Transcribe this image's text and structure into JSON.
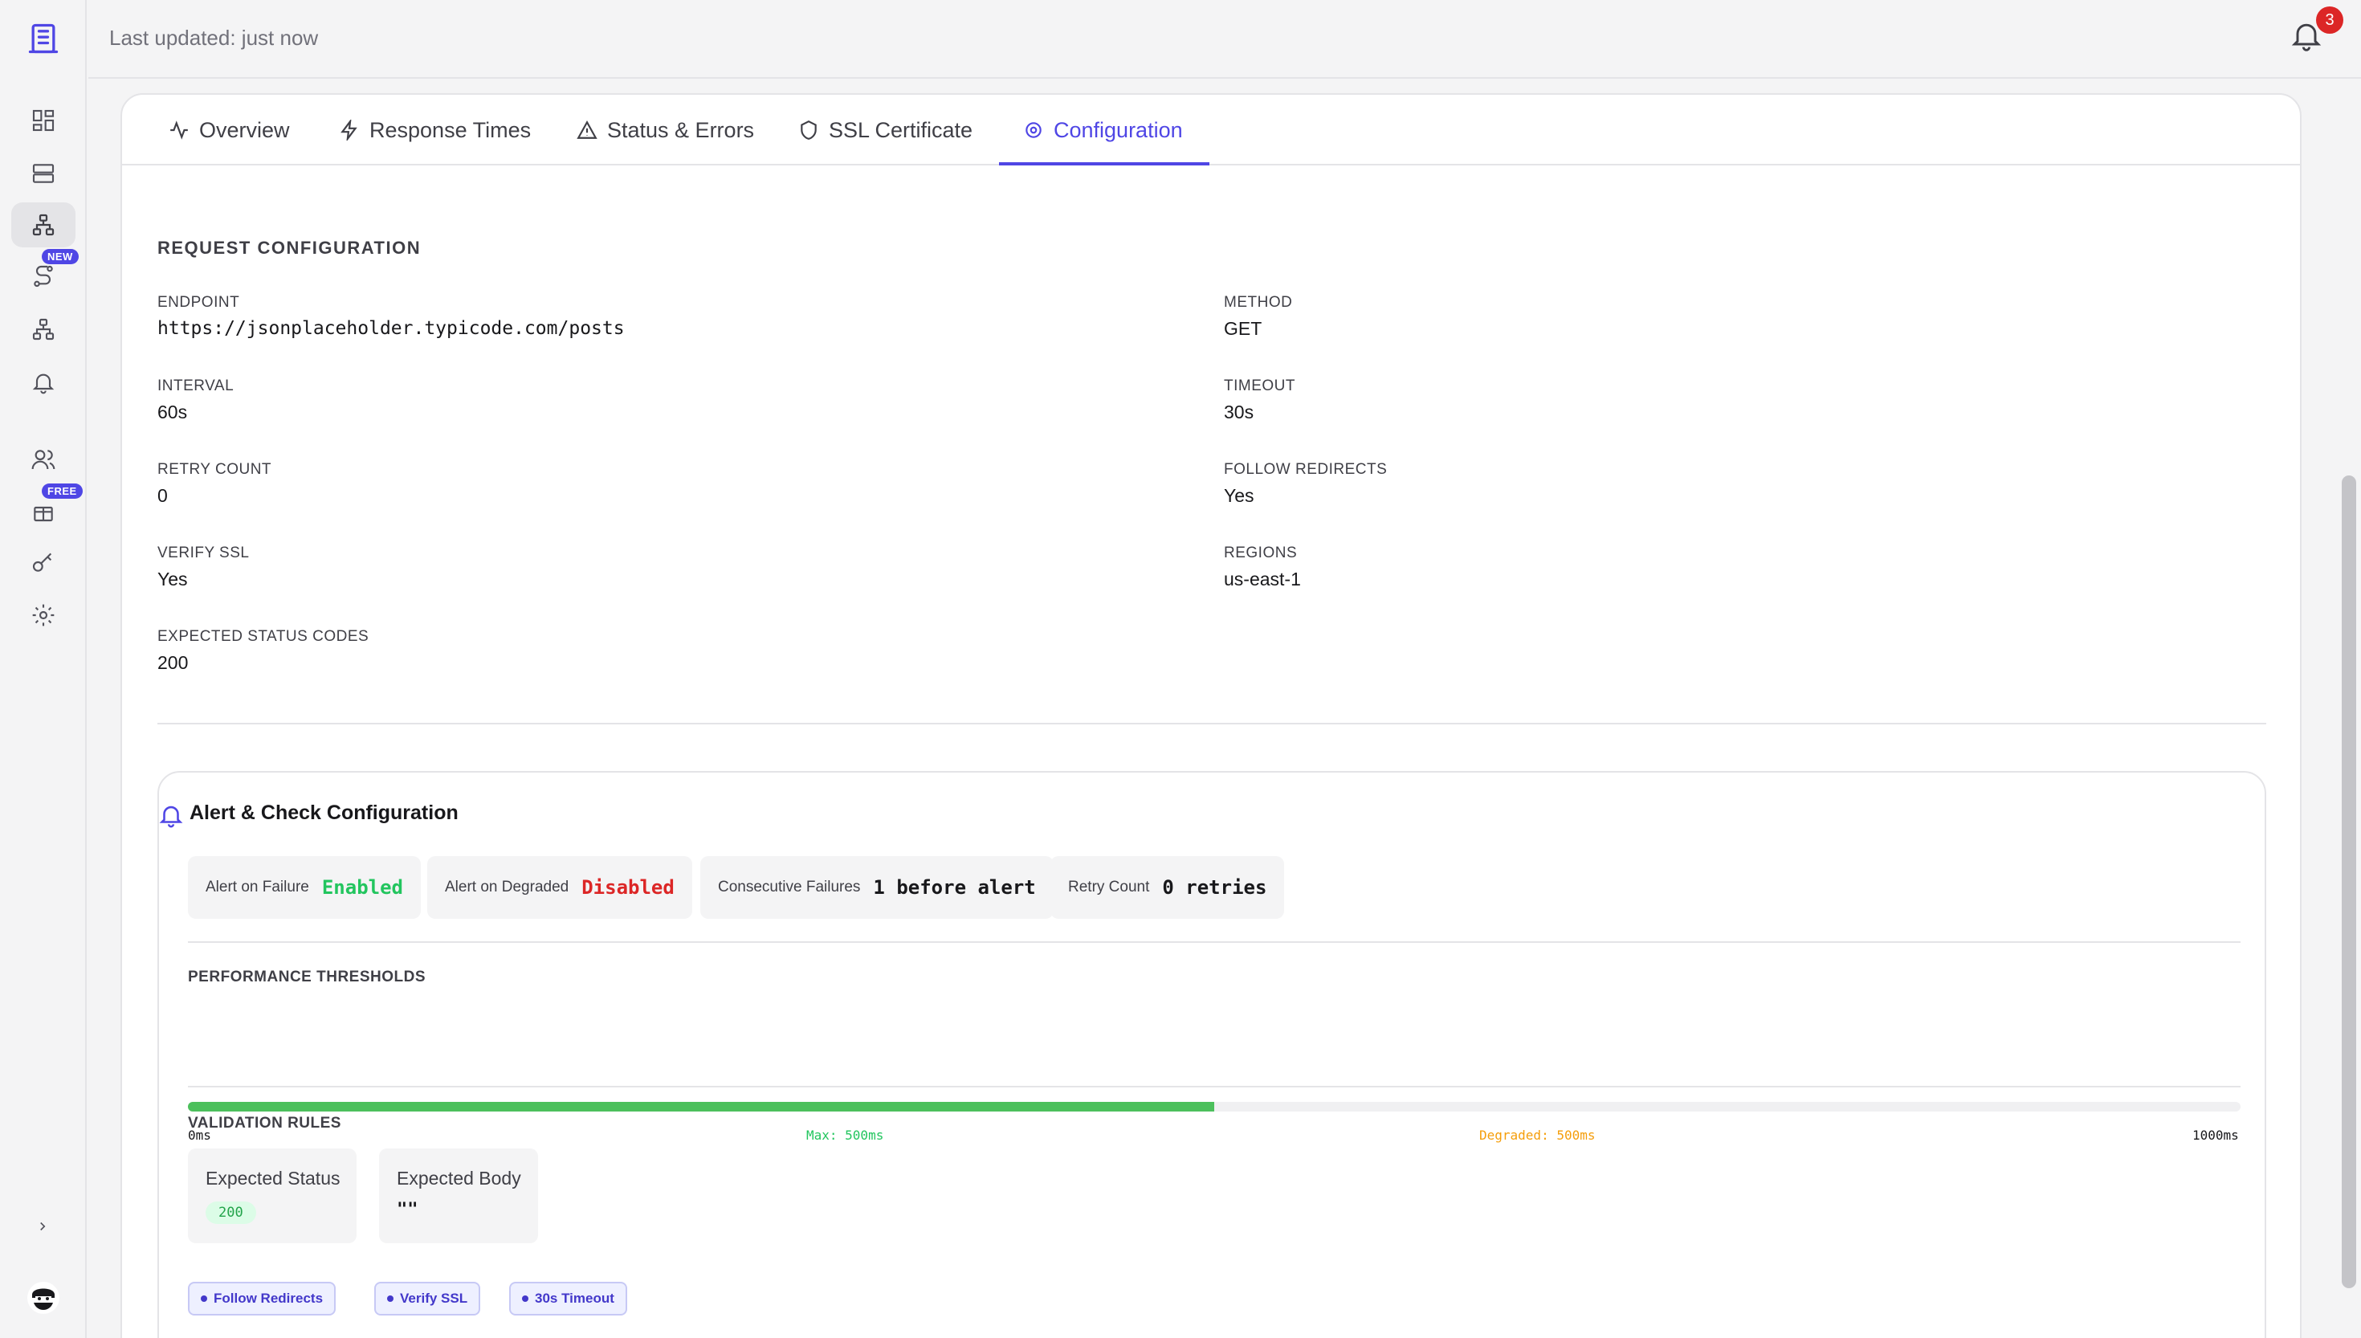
{
  "topbar": {
    "last_updated": "Last updated: just now",
    "notification_count": "3"
  },
  "sidebar": {
    "items": [
      {
        "icon": "dashboard-icon"
      },
      {
        "icon": "server-icon"
      },
      {
        "icon": "network-icon",
        "active": true
      },
      {
        "icon": "route-icon",
        "badge": "NEW"
      },
      {
        "icon": "sitemap-icon"
      },
      {
        "icon": "bell-icon"
      },
      {
        "icon": "users-icon"
      },
      {
        "icon": "gift-icon",
        "badge": "FREE"
      },
      {
        "icon": "key-icon"
      },
      {
        "icon": "gear-icon"
      }
    ]
  },
  "tabs": [
    {
      "label": "Overview",
      "icon": "activity-icon"
    },
    {
      "label": "Response Times",
      "icon": "lightning-icon"
    },
    {
      "label": "Status & Errors",
      "icon": "warning-icon"
    },
    {
      "label": "SSL Certificate",
      "icon": "shield-icon"
    },
    {
      "label": "Configuration",
      "icon": "gear-icon",
      "active": true
    }
  ],
  "request_config": {
    "title": "REQUEST CONFIGURATION",
    "endpoint_label": "ENDPOINT",
    "endpoint": "https://jsonplaceholder.typicode.com/posts",
    "method_label": "METHOD",
    "method": "GET",
    "interval_label": "INTERVAL",
    "interval": "60s",
    "timeout_label": "TIMEOUT",
    "timeout": "30s",
    "retry_label": "RETRY COUNT",
    "retry": "0",
    "follow_label": "FOLLOW REDIRECTS",
    "follow": "Yes",
    "verify_label": "VERIFY SSL",
    "verify": "Yes",
    "regions_label": "REGIONS",
    "regions": "us-east-1",
    "expected_label": "EXPECTED STATUS CODES",
    "expected": "200"
  },
  "alert": {
    "title": "Alert & Check Configuration",
    "pills": [
      {
        "label": "Alert on Failure",
        "value": "Enabled",
        "color": "#22c55e"
      },
      {
        "label": "Alert on Degraded",
        "value": "Disabled",
        "color": "#dc2626"
      },
      {
        "label": "Consecutive Failures",
        "value": "1 before alert",
        "color": "#18181b"
      },
      {
        "label": "Retry Count",
        "value": "0 retries",
        "color": "#18181b"
      }
    ],
    "thresholds_title": "PERFORMANCE THRESHOLDS",
    "threshold_fill_fraction": 0.5,
    "tick_min": "0ms",
    "tick_max_label": "Max: 500ms",
    "tick_degraded": "Degraded: 500ms",
    "tick_end": "1000ms",
    "validation_title": "VALIDATION RULES",
    "expected_status_label": "Expected Status",
    "expected_status_value": "200",
    "expected_body_label": "Expected Body",
    "expected_body_value": "\"\"",
    "tags": [
      "Follow Redirects",
      "Verify SSL",
      "30s Timeout"
    ]
  }
}
